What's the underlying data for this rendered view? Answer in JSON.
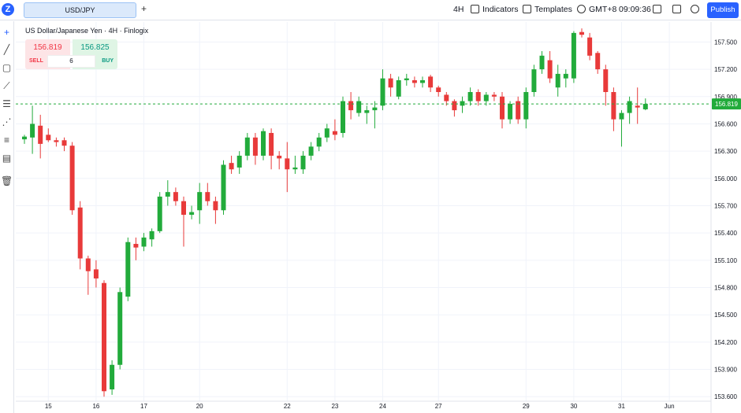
{
  "topbar": {
    "symbol": "USD/JPY",
    "add_tab": "+",
    "interval": "4H",
    "indicators": "Indicators",
    "templates": "Templates",
    "timezone": "GMT+8",
    "clock": "09:09:36",
    "publish": "Publish"
  },
  "legend": {
    "title": "US Dollar/Japanese Yen · 4H · Finlogix"
  },
  "trade": {
    "sell_price": "156.819",
    "buy_price": "156.825",
    "sell_label": "SELL",
    "buy_label": "BUY",
    "quantity": "6"
  },
  "colors": {
    "up": "#22ab3b",
    "down": "#e83a3a",
    "price_line": "#22ab3b"
  },
  "chart_data": {
    "type": "candlestick",
    "title": "",
    "xlabel": "",
    "ylabel": "",
    "y_ticks": [
      157.5,
      157.2,
      156.9,
      156.6,
      156.3,
      156.0,
      155.7,
      155.4,
      155.1,
      154.8,
      154.5,
      154.2,
      153.9,
      153.6
    ],
    "y_tick_labels": [
      "157.500",
      "157.200",
      "156.900",
      "156.600",
      "156.300",
      "156.000",
      "155.700",
      "155.400",
      "155.100",
      "154.800",
      "154.500",
      "154.200",
      "153.900",
      "153.600"
    ],
    "ylim": [
      153.55,
      157.72
    ],
    "x_tick_labels": [
      {
        "label": "15",
        "idx": 3
      },
      {
        "label": "16",
        "idx": 9
      },
      {
        "label": "17",
        "idx": 15
      },
      {
        "label": "20",
        "idx": 22
      },
      {
        "label": "22",
        "idx": 33
      },
      {
        "label": "23",
        "idx": 39
      },
      {
        "label": "24",
        "idx": 45
      },
      {
        "label": "27",
        "idx": 52
      },
      {
        "label": "29",
        "idx": 63
      },
      {
        "label": "30",
        "idx": 69
      },
      {
        "label": "31",
        "idx": 75
      },
      {
        "label": "Jun",
        "idx": 81
      }
    ],
    "current_price": 156.819,
    "current_price_label": "156.819",
    "candles": [
      {
        "o": 156.43,
        "h": 156.48,
        "l": 156.38,
        "c": 156.46
      },
      {
        "o": 156.45,
        "h": 156.8,
        "l": 156.27,
        "c": 156.6
      },
      {
        "o": 156.58,
        "h": 156.7,
        "l": 156.22,
        "c": 156.38
      },
      {
        "o": 156.48,
        "h": 156.55,
        "l": 156.4,
        "c": 156.42
      },
      {
        "o": 156.42,
        "h": 156.45,
        "l": 156.35,
        "c": 156.4
      },
      {
        "o": 156.42,
        "h": 156.45,
        "l": 156.3,
        "c": 156.36
      },
      {
        "o": 156.36,
        "h": 156.4,
        "l": 155.6,
        "c": 155.65
      },
      {
        "o": 155.68,
        "h": 155.75,
        "l": 155.0,
        "c": 155.12
      },
      {
        "o": 155.12,
        "h": 155.15,
        "l": 154.72,
        "c": 154.98
      },
      {
        "o": 155.0,
        "h": 155.1,
        "l": 154.8,
        "c": 154.9
      },
      {
        "o": 154.85,
        "h": 154.88,
        "l": 153.6,
        "c": 153.66
      },
      {
        "o": 153.68,
        "h": 154.0,
        "l": 153.62,
        "c": 153.95
      },
      {
        "o": 153.95,
        "h": 154.8,
        "l": 153.9,
        "c": 154.75
      },
      {
        "o": 154.7,
        "h": 155.35,
        "l": 154.65,
        "c": 155.3
      },
      {
        "o": 155.28,
        "h": 155.35,
        "l": 155.1,
        "c": 155.24
      },
      {
        "o": 155.25,
        "h": 155.4,
        "l": 155.2,
        "c": 155.35
      },
      {
        "o": 155.33,
        "h": 155.45,
        "l": 155.25,
        "c": 155.42
      },
      {
        "o": 155.42,
        "h": 155.85,
        "l": 155.4,
        "c": 155.8
      },
      {
        "o": 155.8,
        "h": 155.98,
        "l": 155.7,
        "c": 155.85
      },
      {
        "o": 155.85,
        "h": 155.9,
        "l": 155.7,
        "c": 155.75
      },
      {
        "o": 155.75,
        "h": 155.8,
        "l": 155.25,
        "c": 155.6
      },
      {
        "o": 155.6,
        "h": 155.7,
        "l": 155.55,
        "c": 155.63
      },
      {
        "o": 155.65,
        "h": 155.95,
        "l": 155.5,
        "c": 155.85
      },
      {
        "o": 155.85,
        "h": 155.95,
        "l": 155.7,
        "c": 155.75
      },
      {
        "o": 155.75,
        "h": 155.8,
        "l": 155.5,
        "c": 155.65
      },
      {
        "o": 155.65,
        "h": 156.2,
        "l": 155.6,
        "c": 156.15
      },
      {
        "o": 156.17,
        "h": 156.25,
        "l": 156.05,
        "c": 156.1
      },
      {
        "o": 156.12,
        "h": 156.3,
        "l": 156.05,
        "c": 156.25
      },
      {
        "o": 156.25,
        "h": 156.5,
        "l": 156.2,
        "c": 156.45
      },
      {
        "o": 156.45,
        "h": 156.5,
        "l": 156.15,
        "c": 156.25
      },
      {
        "o": 156.25,
        "h": 156.55,
        "l": 156.2,
        "c": 156.52
      },
      {
        "o": 156.5,
        "h": 156.55,
        "l": 156.1,
        "c": 156.25
      },
      {
        "o": 156.25,
        "h": 156.3,
        "l": 156.1,
        "c": 156.22
      },
      {
        "o": 156.22,
        "h": 156.4,
        "l": 155.85,
        "c": 156.1
      },
      {
        "o": 156.1,
        "h": 156.25,
        "l": 156.05,
        "c": 156.12
      },
      {
        "o": 156.1,
        "h": 156.3,
        "l": 156.05,
        "c": 156.25
      },
      {
        "o": 156.25,
        "h": 156.4,
        "l": 156.2,
        "c": 156.35
      },
      {
        "o": 156.35,
        "h": 156.5,
        "l": 156.3,
        "c": 156.45
      },
      {
        "o": 156.45,
        "h": 156.6,
        "l": 156.4,
        "c": 156.55
      },
      {
        "o": 156.52,
        "h": 156.65,
        "l": 156.42,
        "c": 156.48
      },
      {
        "o": 156.5,
        "h": 156.9,
        "l": 156.45,
        "c": 156.85
      },
      {
        "o": 156.85,
        "h": 156.95,
        "l": 156.65,
        "c": 156.75
      },
      {
        "o": 156.72,
        "h": 156.9,
        "l": 156.68,
        "c": 156.85
      },
      {
        "o": 156.72,
        "h": 156.8,
        "l": 156.6,
        "c": 156.75
      },
      {
        "o": 156.75,
        "h": 156.85,
        "l": 156.55,
        "c": 156.78
      },
      {
        "o": 156.8,
        "h": 157.2,
        "l": 156.75,
        "c": 157.1
      },
      {
        "o": 157.1,
        "h": 157.15,
        "l": 156.9,
        "c": 157.0
      },
      {
        "o": 156.9,
        "h": 157.12,
        "l": 156.87,
        "c": 157.08
      },
      {
        "o": 157.08,
        "h": 157.15,
        "l": 157.02,
        "c": 157.1
      },
      {
        "o": 157.08,
        "h": 157.12,
        "l": 157.0,
        "c": 157.05
      },
      {
        "o": 157.05,
        "h": 157.12,
        "l": 157.0,
        "c": 157.08
      },
      {
        "o": 157.12,
        "h": 157.14,
        "l": 156.95,
        "c": 157.0
      },
      {
        "o": 157.0,
        "h": 157.02,
        "l": 156.9,
        "c": 156.95
      },
      {
        "o": 156.92,
        "h": 156.95,
        "l": 156.8,
        "c": 156.85
      },
      {
        "o": 156.85,
        "h": 156.87,
        "l": 156.68,
        "c": 156.75
      },
      {
        "o": 156.8,
        "h": 156.9,
        "l": 156.72,
        "c": 156.85
      },
      {
        "o": 156.85,
        "h": 157.0,
        "l": 156.8,
        "c": 156.95
      },
      {
        "o": 156.95,
        "h": 156.98,
        "l": 156.8,
        "c": 156.85
      },
      {
        "o": 156.85,
        "h": 156.95,
        "l": 156.8,
        "c": 156.92
      },
      {
        "o": 156.92,
        "h": 156.95,
        "l": 156.85,
        "c": 156.9
      },
      {
        "o": 156.9,
        "h": 156.95,
        "l": 156.55,
        "c": 156.65
      },
      {
        "o": 156.65,
        "h": 156.85,
        "l": 156.6,
        "c": 156.82
      },
      {
        "o": 156.85,
        "h": 156.9,
        "l": 156.6,
        "c": 156.65
      },
      {
        "o": 156.65,
        "h": 157.0,
        "l": 156.55,
        "c": 156.95
      },
      {
        "o": 156.95,
        "h": 157.25,
        "l": 156.9,
        "c": 157.2
      },
      {
        "o": 157.2,
        "h": 157.4,
        "l": 157.15,
        "c": 157.35
      },
      {
        "o": 157.3,
        "h": 157.4,
        "l": 157.05,
        "c": 157.1
      },
      {
        "o": 157.0,
        "h": 157.25,
        "l": 156.9,
        "c": 157.15
      },
      {
        "o": 157.1,
        "h": 157.2,
        "l": 157.0,
        "c": 157.15
      },
      {
        "o": 157.1,
        "h": 157.62,
        "l": 157.05,
        "c": 157.6
      },
      {
        "o": 157.61,
        "h": 157.65,
        "l": 157.55,
        "c": 157.58
      },
      {
        "o": 157.55,
        "h": 157.6,
        "l": 157.3,
        "c": 157.35
      },
      {
        "o": 157.38,
        "h": 157.4,
        "l": 157.15,
        "c": 157.2
      },
      {
        "o": 157.2,
        "h": 157.25,
        "l": 156.8,
        "c": 156.95
      },
      {
        "o": 156.95,
        "h": 157.0,
        "l": 156.52,
        "c": 156.65
      },
      {
        "o": 156.65,
        "h": 156.75,
        "l": 156.35,
        "c": 156.72
      },
      {
        "o": 156.72,
        "h": 156.9,
        "l": 156.6,
        "c": 156.85
      },
      {
        "o": 156.8,
        "h": 157.0,
        "l": 156.6,
        "c": 156.78
      },
      {
        "o": 156.76,
        "h": 156.88,
        "l": 156.75,
        "c": 156.82
      }
    ]
  }
}
